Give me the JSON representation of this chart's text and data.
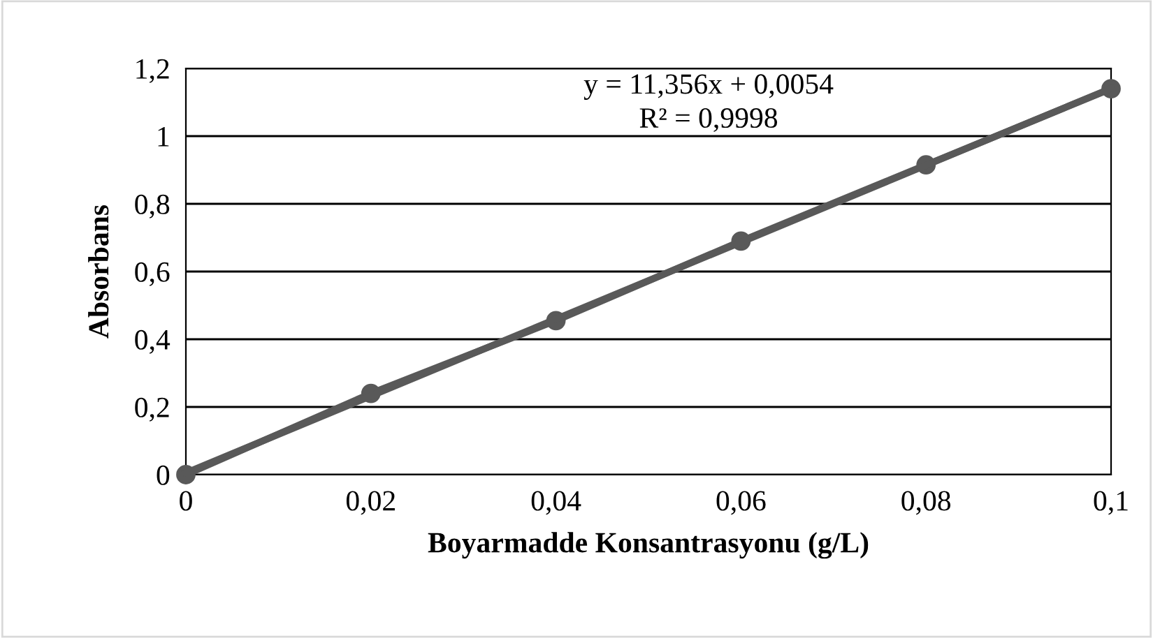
{
  "chart_data": {
    "type": "line",
    "xlabel": "Boyarmadde Konsantrasyonu (g/L)",
    "ylabel": "Absorbans",
    "x": [
      0,
      0.02,
      0.04,
      0.06,
      0.08,
      0.1
    ],
    "series": [
      {
        "color": "#595959",
        "values": [
          0,
          0.24,
          0.455,
          0.69,
          0.915,
          1.14
        ],
        "marker": "circle"
      },
      {
        "type": "line",
        "color": "#595959",
        "x": [
          0,
          0.1
        ],
        "values": [
          0.0054,
          1.141
        ],
        "marker": "none"
      }
    ],
    "annotations": [
      "y = 11,356x + 0,0054",
      "R² = 0,9998"
    ],
    "xlim": [
      0,
      0.1
    ],
    "ylim": [
      0,
      1.2
    ],
    "xticks": [
      0,
      {
        "value": 0.02,
        "label": "0,02"
      },
      {
        "value": 0.04,
        "label": "0,04"
      },
      {
        "value": 0.06,
        "label": "0,06"
      },
      {
        "value": 0.08,
        "label": "0,08"
      },
      {
        "value": 0.1,
        "label": "0,1"
      }
    ],
    "yticks": [
      0,
      {
        "value": 0.2,
        "label": "0,2"
      },
      {
        "value": 0.4,
        "label": "0,4"
      },
      {
        "value": 0.6,
        "label": "0,6"
      },
      {
        "value": 0.8,
        "label": "0,8"
      },
      1,
      {
        "value": 1.2,
        "label": "1,2"
      }
    ],
    "grid": "y",
    "legend": false
  }
}
